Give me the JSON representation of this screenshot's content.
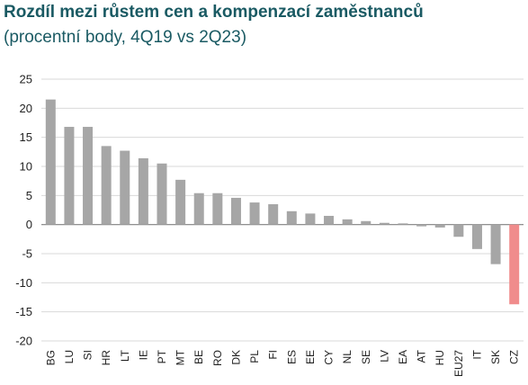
{
  "chart_data": {
    "type": "bar",
    "title": "Rozdíl mezi růstem cen a kompenzací zaměstnanců",
    "subtitle": "(procentní body, 4Q19 vs 2Q23)",
    "xlabel": "",
    "ylabel": "",
    "ylim": [
      -20,
      25
    ],
    "yticks": [
      25,
      20,
      15,
      10,
      5,
      0,
      -5,
      -10,
      -15,
      -20
    ],
    "grid": true,
    "legend": "none",
    "categories": [
      "BG",
      "LU",
      "SI",
      "HR",
      "LT",
      "IE",
      "PT",
      "MT",
      "BE",
      "RO",
      "DK",
      "PL",
      "FI",
      "ES",
      "EE",
      "CY",
      "NL",
      "SE",
      "LV",
      "EA",
      "AT",
      "HU",
      "EU27",
      "IT",
      "SK",
      "CZ"
    ],
    "values": [
      21.5,
      16.8,
      16.8,
      13.5,
      12.7,
      11.4,
      10.5,
      7.7,
      5.4,
      5.4,
      4.6,
      3.8,
      3.5,
      2.3,
      1.9,
      1.5,
      0.9,
      0.6,
      0.3,
      0.2,
      -0.3,
      -0.5,
      -2.1,
      -4.2,
      -6.8,
      -13.7
    ],
    "colors": {
      "default": "#a6a6a6",
      "highlight": "#f08c8c",
      "grid": "#d9d9d9",
      "axis": "#808080"
    },
    "highlight_category": "CZ"
  }
}
